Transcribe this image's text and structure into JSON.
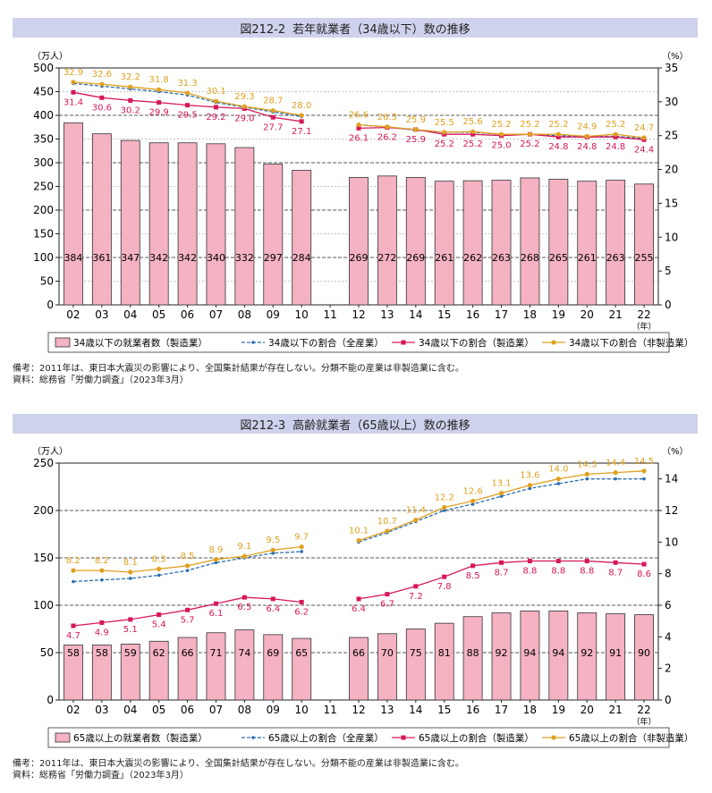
{
  "chart_data": [
    {
      "figure_no": "図212-2",
      "title": "若年就業者（34歳以下）数の推移",
      "type": "bar",
      "yunit_left": "（万人）",
      "yunit_right": "（%）",
      "xunit": "（年）",
      "categories": [
        "02",
        "03",
        "04",
        "05",
        "06",
        "07",
        "08",
        "09",
        "10",
        "11",
        "12",
        "13",
        "14",
        "15",
        "16",
        "17",
        "18",
        "19",
        "20",
        "21",
        "22"
      ],
      "ylim_left": [
        0,
        500
      ],
      "yticks_left": [
        0,
        50,
        100,
        150,
        200,
        250,
        300,
        350,
        400,
        450,
        500
      ],
      "ylim_right": [
        0,
        35
      ],
      "yticks_right": [
        0,
        5,
        10,
        15,
        20,
        25,
        30,
        35
      ],
      "bars": {
        "name": "34歳以下の就業者数（製造業）",
        "color": "#f4b2c2",
        "values": [
          384,
          361,
          347,
          342,
          342,
          340,
          332,
          297,
          284,
          null,
          269,
          272,
          269,
          261,
          262,
          263,
          268,
          265,
          261,
          263,
          255
        ]
      },
      "lines": [
        {
          "name": "34歳以下の割合（全産業）",
          "color": "#2a6fb0",
          "style": "dashed",
          "values": [
            32.7,
            32.3,
            31.9,
            31.5,
            31.0,
            29.9,
            29.2,
            28.5,
            27.8,
            null,
            26.6,
            26.3,
            25.8,
            25.5,
            25.5,
            25.2,
            25.2,
            25.0,
            24.9,
            24.9,
            24.6
          ],
          "labels": []
        },
        {
          "name": "34歳以下の割合（製造業）",
          "color": "#d6175a",
          "style": "solid",
          "values": [
            31.4,
            30.6,
            30.2,
            29.9,
            29.5,
            29.2,
            29.0,
            27.7,
            27.1,
            null,
            26.1,
            26.2,
            25.9,
            25.2,
            25.2,
            25.0,
            25.2,
            24.8,
            24.8,
            24.8,
            24.4
          ],
          "labels": [
            "31.4",
            "30.6",
            "30.2",
            "29.9",
            "29.5",
            "29.2",
            "29.0",
            "27.7",
            "27.1",
            "",
            "26.1",
            "26.2",
            "25.9",
            "25.2",
            "25.2",
            "25.0",
            "25.2",
            "24.8",
            "24.8",
            "24.8",
            "24.4"
          ]
        },
        {
          "name": "34歳以下の割合（非製造業）",
          "color": "#e0a020",
          "style": "solid",
          "values": [
            32.9,
            32.6,
            32.2,
            31.8,
            31.3,
            30.1,
            29.3,
            28.7,
            28.0,
            null,
            26.6,
            26.3,
            25.9,
            25.5,
            25.6,
            25.2,
            25.2,
            25.2,
            24.9,
            25.2,
            24.7
          ],
          "labels": [
            "32.9",
            "32.6",
            "32.2",
            "31.8",
            "31.3",
            "30.1",
            "29.3",
            "28.7",
            "28.0",
            "",
            "26.6",
            "26.3",
            "25.9",
            "25.5",
            "25.6",
            "25.2",
            "25.2",
            "25.2",
            "24.9",
            "25.2",
            "24.7"
          ]
        }
      ],
      "notes": [
        "備考：2011年は、東日本大震災の影響により、全国集計結果が存在しない。分類不能の産業は非製造業に含む。",
        "資料：総務省「労働力調査」（2023年3月）"
      ]
    },
    {
      "figure_no": "図212-3",
      "title": "高齢就業者（65歳以上）数の推移",
      "type": "bar",
      "yunit_left": "（万人）",
      "yunit_right": "（%）",
      "xunit": "（年）",
      "categories": [
        "02",
        "03",
        "04",
        "05",
        "06",
        "07",
        "08",
        "09",
        "10",
        "11",
        "12",
        "13",
        "14",
        "15",
        "16",
        "17",
        "18",
        "19",
        "20",
        "21",
        "22"
      ],
      "ylim_left": [
        0,
        250
      ],
      "yticks_left": [
        0,
        50,
        100,
        150,
        200,
        250
      ],
      "ylim_right": [
        0,
        15
      ],
      "yticks_right": [
        0,
        2,
        4,
        6,
        8,
        10,
        12,
        14
      ],
      "bars": {
        "name": "65歳以上の就業者数（製造業）",
        "color": "#f4b2c2",
        "values": [
          58,
          58,
          59,
          62,
          66,
          71,
          74,
          69,
          65,
          null,
          66,
          70,
          75,
          81,
          88,
          92,
          94,
          94,
          92,
          91,
          90
        ]
      },
      "lines": [
        {
          "name": "65歳以上の割合（全産業）",
          "color": "#2a6fb0",
          "style": "dashed",
          "values": [
            7.5,
            7.6,
            7.7,
            7.9,
            8.2,
            8.7,
            9.0,
            9.3,
            9.4,
            null,
            10.0,
            10.6,
            11.3,
            12.0,
            12.4,
            12.9,
            13.4,
            13.7,
            14.0,
            14.0,
            14.0
          ],
          "labels": []
        },
        {
          "name": "65歳以上の割合（製造業）",
          "color": "#d6175a",
          "style": "solid",
          "values": [
            4.7,
            4.9,
            5.1,
            5.4,
            5.7,
            6.1,
            6.5,
            6.4,
            6.2,
            null,
            6.4,
            6.7,
            7.2,
            7.8,
            8.5,
            8.7,
            8.8,
            8.8,
            8.8,
            8.7,
            8.6
          ],
          "labels": [
            "4.7",
            "4.9",
            "5.1",
            "5.4",
            "5.7",
            "6.1",
            "6.5",
            "6.4",
            "6.2",
            "",
            "6.4",
            "6.7",
            "7.2",
            "7.8",
            "8.5",
            "8.7",
            "8.8",
            "8.8",
            "8.8",
            "8.7",
            "8.6"
          ]
        },
        {
          "name": "65歳以上の割合（非製造業）",
          "color": "#e0a020",
          "style": "solid",
          "values": [
            8.2,
            8.2,
            8.1,
            8.3,
            8.5,
            8.9,
            9.1,
            9.5,
            9.7,
            null,
            10.1,
            10.7,
            11.4,
            12.2,
            12.6,
            13.1,
            13.6,
            14.0,
            14.3,
            14.4,
            14.5
          ],
          "labels": [
            "8.2",
            "8.2",
            "8.1",
            "8.3",
            "8.5",
            "8.9",
            "9.1",
            "9.5",
            "9.7",
            "",
            "10.1",
            "10.7",
            "11.4",
            "12.2",
            "12.6",
            "13.1",
            "13.6",
            "14.0",
            "14.3",
            "14.4",
            "14.5"
          ]
        }
      ],
      "notes": [
        "備考：2011年は、東日本大震災の影響により、全国集計結果が存在しない。分類不能の産業は非製造業に含む。",
        "資料：総務省「労働力調査」（2023年3月）"
      ]
    }
  ]
}
